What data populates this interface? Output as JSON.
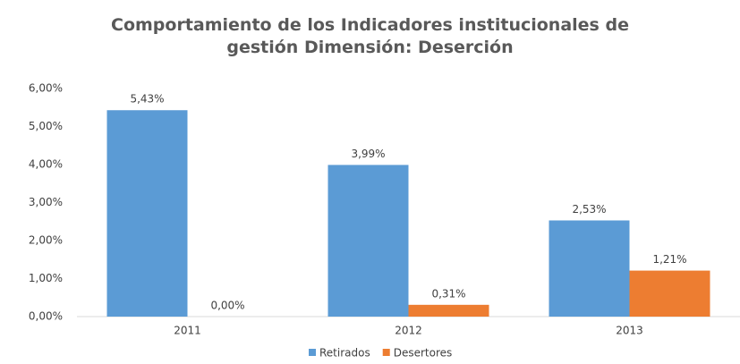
{
  "chart_data": {
    "type": "bar",
    "title": "Comportamiento de los Indicadores institucionales de gestión Dimensión: Deserción",
    "categories": [
      "2011",
      "2012",
      "2013"
    ],
    "series": [
      {
        "name": "Retirados",
        "color": "#5b9bd5",
        "values": [
          5.43,
          3.99,
          2.53
        ],
        "value_labels": [
          "5,43%",
          "3,99%",
          "2,53%"
        ]
      },
      {
        "name": "Desertores",
        "color": "#ed7d31",
        "values": [
          0,
          0.31,
          1.21
        ],
        "value_labels": [
          "0,00%",
          "0,31%",
          "1,21%"
        ]
      }
    ],
    "ylim": [
      0,
      6
    ],
    "yticks": [
      {
        "value": 0,
        "label": "0,00%"
      },
      {
        "value": 1,
        "label": "1,00%"
      },
      {
        "value": 2,
        "label": "2,00%"
      },
      {
        "value": 3,
        "label": "3,00%"
      },
      {
        "value": 4,
        "label": "4,00%"
      },
      {
        "value": 5,
        "label": "5,00%"
      },
      {
        "value": 6,
        "label": "6,00%"
      }
    ],
    "grid": false,
    "legend": "bottom"
  }
}
